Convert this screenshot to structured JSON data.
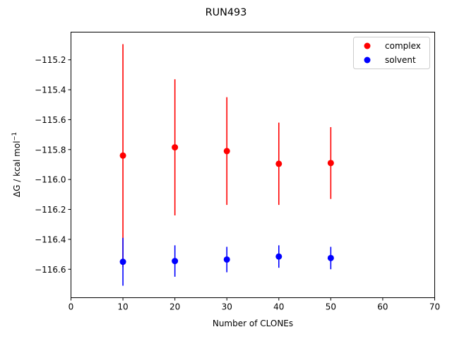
{
  "chart_data": {
    "type": "scatter",
    "title": "RUN493",
    "xlabel": "Number of CLONEs",
    "ylabel": "ΔG / kcal mol",
    "ylabel_superscript": "−1",
    "xlim": [
      0,
      70
    ],
    "ylim": [
      -116.79,
      -115.015
    ],
    "x_ticks": [
      0,
      10,
      20,
      30,
      40,
      50,
      60,
      70
    ],
    "x_tick_labels": [
      "0",
      "10",
      "20",
      "30",
      "40",
      "50",
      "60",
      "70"
    ],
    "y_ticks": [
      -115.2,
      -115.4,
      -115.6,
      -115.8,
      -116.0,
      -116.2,
      -116.4,
      -116.6
    ],
    "y_tick_labels": [
      "−115.2",
      "−115.4",
      "−115.6",
      "−115.8",
      "−116.0",
      "−116.2",
      "−116.4",
      "−116.6"
    ],
    "grid": false,
    "legend_position": "top-right",
    "series": [
      {
        "name": "complex",
        "color": "#ff0000",
        "x": [
          10,
          20,
          30,
          40,
          50
        ],
        "y": [
          -115.84,
          -115.785,
          -115.81,
          -115.895,
          -115.89
        ],
        "err": [
          0.745,
          0.455,
          0.36,
          0.275,
          0.24
        ]
      },
      {
        "name": "solvent",
        "color": "#0000ff",
        "x": [
          10,
          20,
          30,
          40,
          50
        ],
        "y": [
          -116.55,
          -116.545,
          -116.535,
          -116.515,
          -116.525
        ],
        "err": [
          0.16,
          0.105,
          0.085,
          0.075,
          0.075
        ]
      }
    ]
  }
}
